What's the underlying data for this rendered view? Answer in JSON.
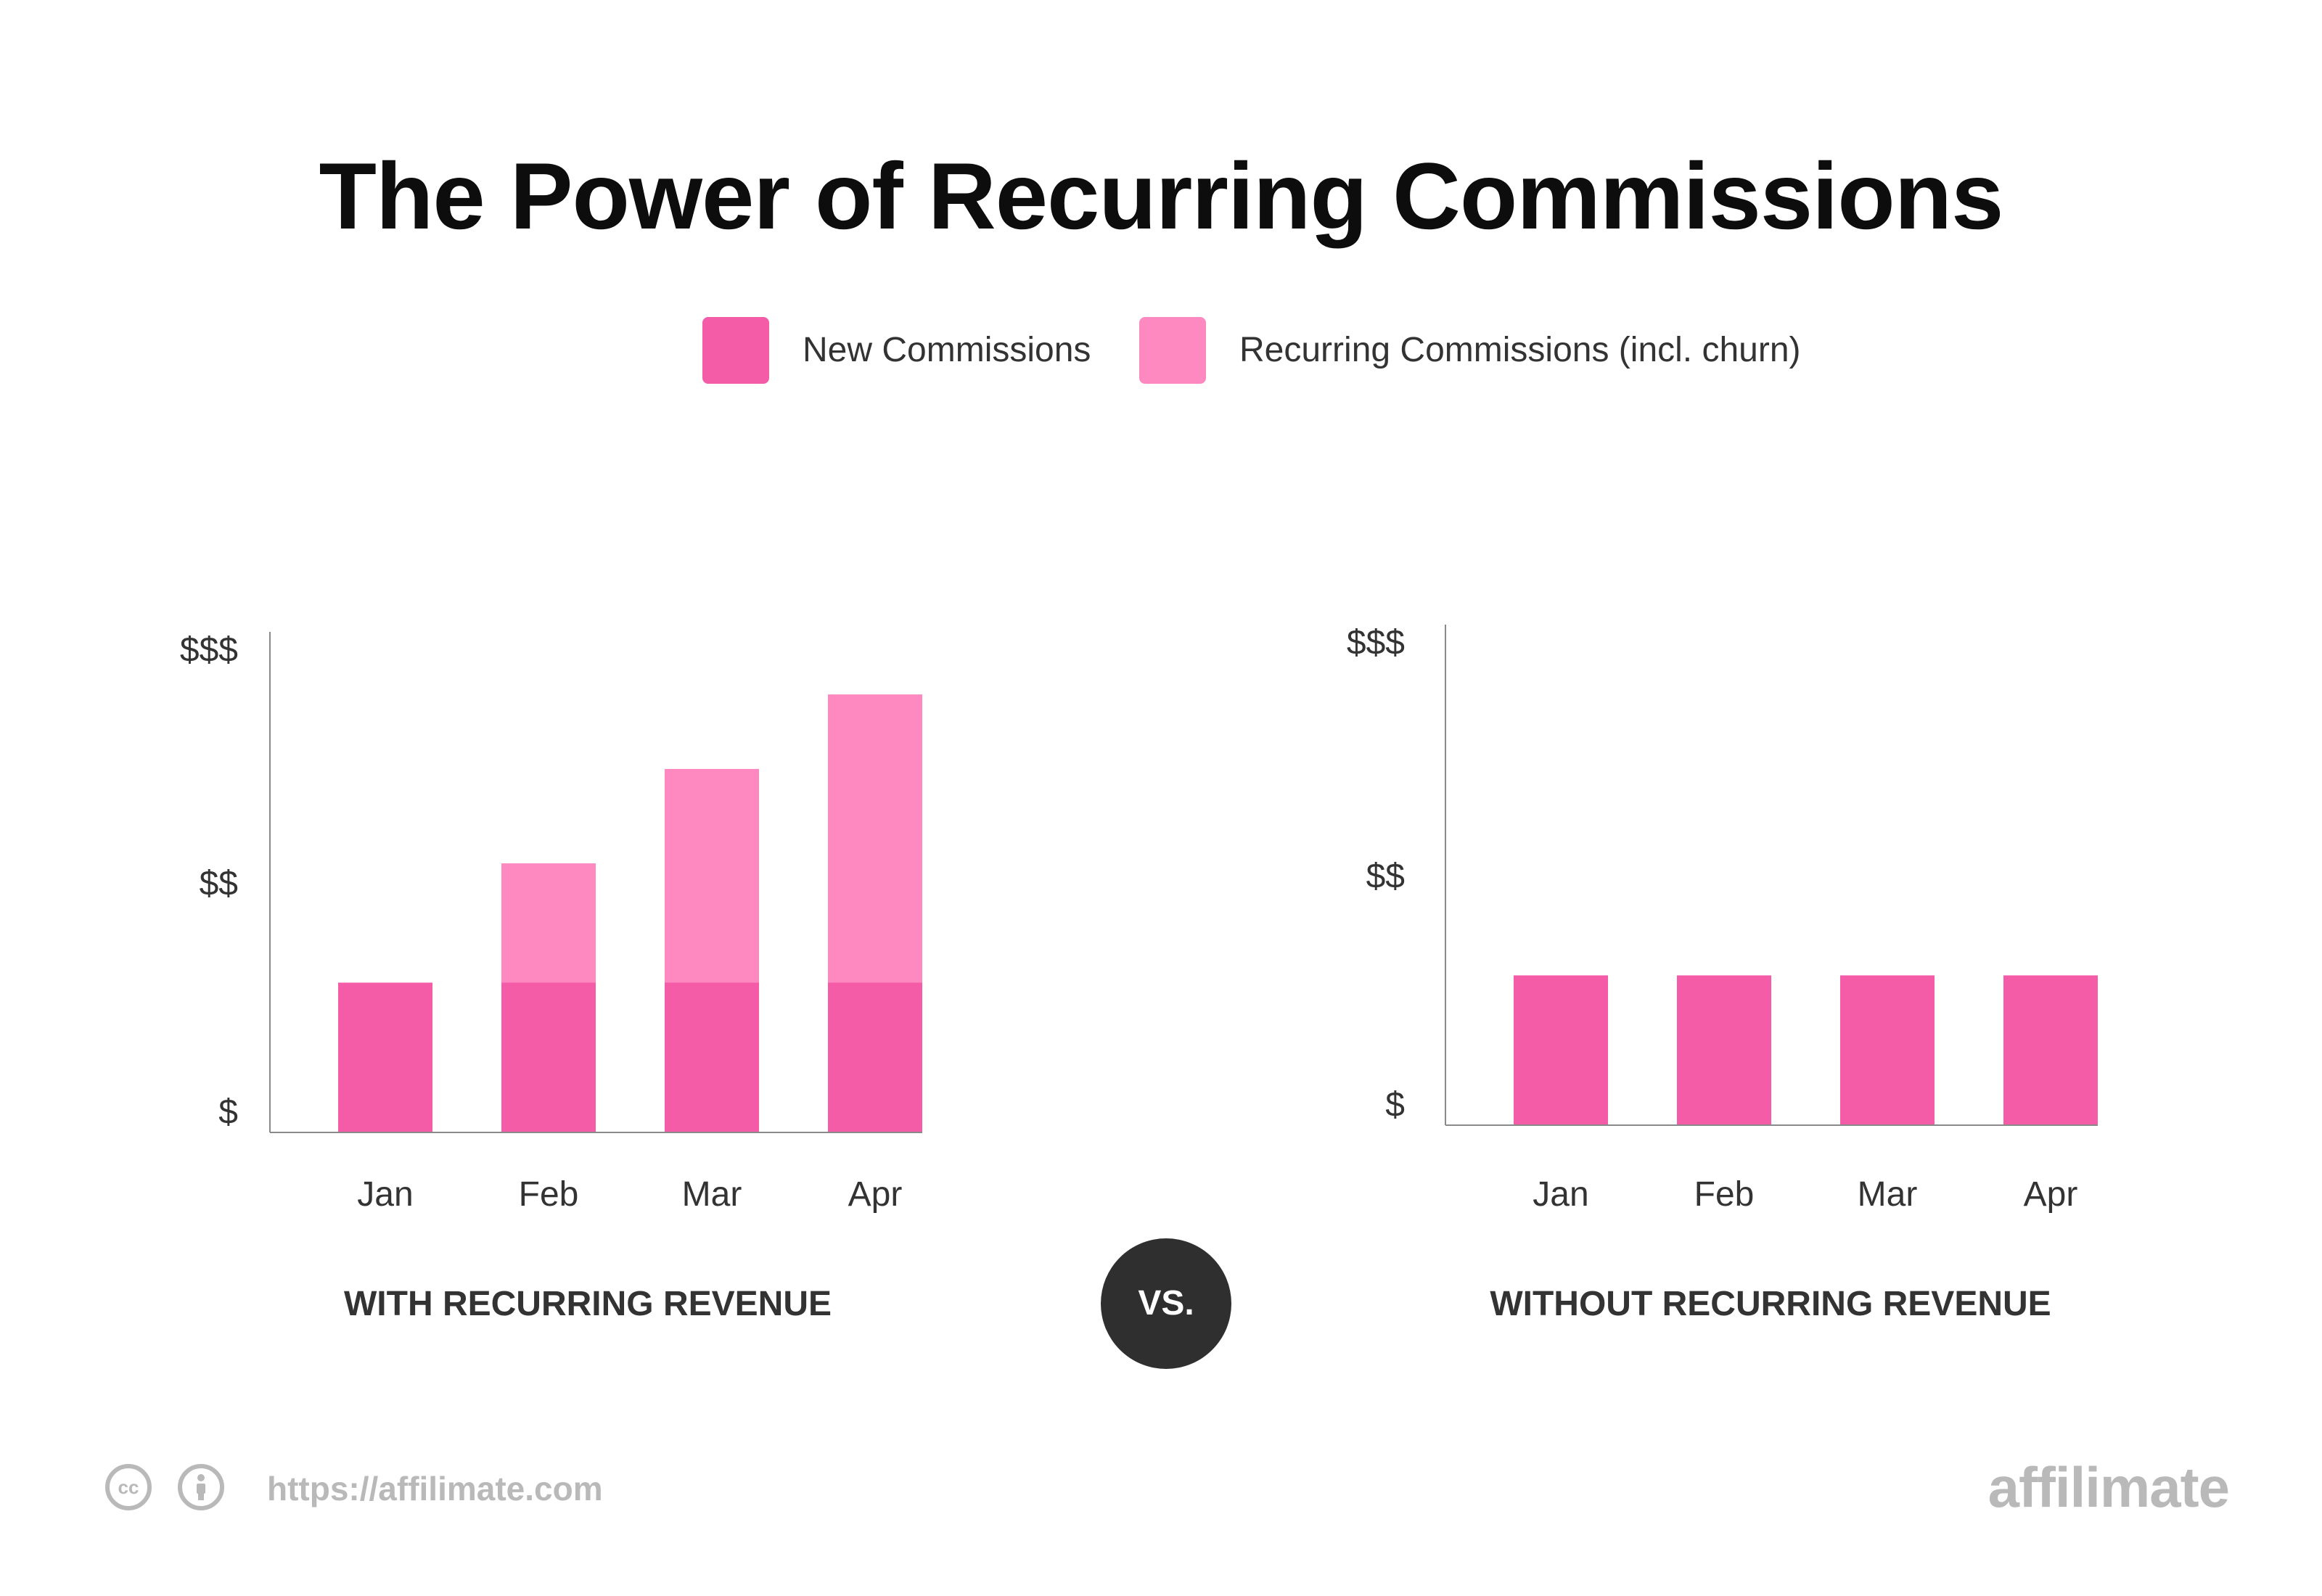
{
  "title": "The Power of Recurring Commissions",
  "legend": [
    {
      "label": "New Commissions",
      "color": "#f55ca8"
    },
    {
      "label": "Recurring Commissions (incl. churn)",
      "color": "#fe88c0"
    }
  ],
  "chart_data": [
    {
      "type": "bar",
      "stacked": true,
      "title": "WITH RECURRING REVENUE",
      "categories": [
        "Jan",
        "Feb",
        "Mar",
        "Apr"
      ],
      "y_tick_labels": [
        "$",
        "$$",
        "$$$"
      ],
      "ylim": [
        0,
        100
      ],
      "grid": false,
      "series": [
        {
          "name": "New Commissions",
          "color": "#f55ca8",
          "values": [
            30,
            30,
            30,
            30
          ]
        },
        {
          "name": "Recurring Commissions (incl. churn)",
          "color": "#fe88c0",
          "values": [
            0,
            24,
            43,
            58
          ]
        }
      ]
    },
    {
      "type": "bar",
      "stacked": true,
      "title": "WITHOUT RECURRING REVENUE",
      "categories": [
        "Jan",
        "Feb",
        "Mar",
        "Apr"
      ],
      "y_tick_labels": [
        "$",
        "$$",
        "$$$"
      ],
      "ylim": [
        0,
        100
      ],
      "grid": false,
      "series": [
        {
          "name": "New Commissions",
          "color": "#f55ca8",
          "values": [
            30,
            30,
            30,
            30
          ]
        }
      ]
    }
  ],
  "vs_label": "VS.",
  "footer": {
    "cc_icon": "cc-icon",
    "cc_text": "cc",
    "person_icon": "person-icon",
    "url": "https://affilimate.com",
    "brand": "affilimate"
  }
}
